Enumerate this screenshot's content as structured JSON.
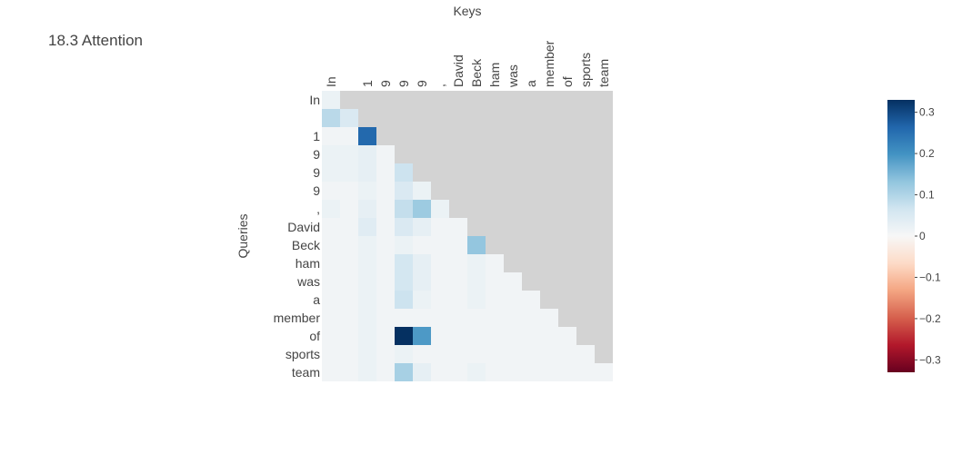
{
  "chart_data": {
    "type": "heatmap",
    "title": "18.3 Attention",
    "xlabel": "Keys",
    "ylabel": "Queries",
    "tokens": [
      "In",
      " ",
      "1",
      "9",
      "9",
      "9",
      ",",
      "David",
      "Beck",
      "ham",
      "was",
      "a",
      "member",
      "of",
      "sports",
      "team"
    ],
    "mask_color": "#d3d3d3",
    "colorscale": "RdBu",
    "zmin": -0.33,
    "zmax": 0.33,
    "colorbar_ticks": [
      0.3,
      0.2,
      0.1,
      0,
      -0.1,
      -0.2,
      -0.3
    ],
    "colorbar_tick_labels": [
      "0.3",
      "0.2",
      "0.1",
      "0",
      "−0.1",
      "−0.2",
      "−0.3"
    ],
    "z": [
      [
        0.02
      ],
      [
        0.09,
        0.05
      ],
      [
        0.01,
        0.01,
        0.26
      ],
      [
        0.02,
        0.02,
        0.03,
        0.01
      ],
      [
        0.02,
        0.02,
        0.03,
        0.01,
        0.07
      ],
      [
        0.01,
        0.01,
        0.02,
        0.01,
        0.05,
        0.02
      ],
      [
        0.02,
        0.01,
        0.03,
        0.01,
        0.08,
        0.12,
        0.02
      ],
      [
        0.01,
        0.01,
        0.04,
        0.01,
        0.05,
        0.03,
        0.01,
        0.01
      ],
      [
        0.01,
        0.01,
        0.02,
        0.01,
        0.02,
        0.01,
        0.01,
        0.01,
        0.13
      ],
      [
        0.01,
        0.01,
        0.02,
        0.01,
        0.06,
        0.03,
        0.01,
        0.01,
        0.02,
        0.01
      ],
      [
        0.01,
        0.01,
        0.02,
        0.01,
        0.06,
        0.03,
        0.01,
        0.01,
        0.02,
        0.01,
        0.01
      ],
      [
        0.01,
        0.01,
        0.02,
        0.01,
        0.07,
        0.02,
        0.01,
        0.01,
        0.02,
        0.01,
        0.01,
        0.01
      ],
      [
        0.01,
        0.01,
        0.02,
        0.01,
        0.01,
        0.01,
        0.01,
        0.01,
        0.01,
        0.01,
        0.01,
        0.01,
        0.01
      ],
      [
        0.01,
        0.01,
        0.02,
        0.01,
        0.33,
        0.19,
        0.01,
        0.01,
        0.01,
        0.01,
        0.01,
        0.01,
        0.01,
        0.01
      ],
      [
        0.01,
        0.01,
        0.02,
        0.01,
        0.02,
        0.01,
        0.01,
        0.01,
        0.01,
        0.01,
        0.01,
        0.01,
        0.01,
        0.01,
        0.01
      ],
      [
        0.01,
        0.01,
        0.02,
        0.01,
        0.11,
        0.03,
        0.01,
        0.01,
        0.02,
        0.01,
        0.01,
        0.01,
        0.01,
        0.01,
        0.01,
        0.01
      ]
    ]
  }
}
